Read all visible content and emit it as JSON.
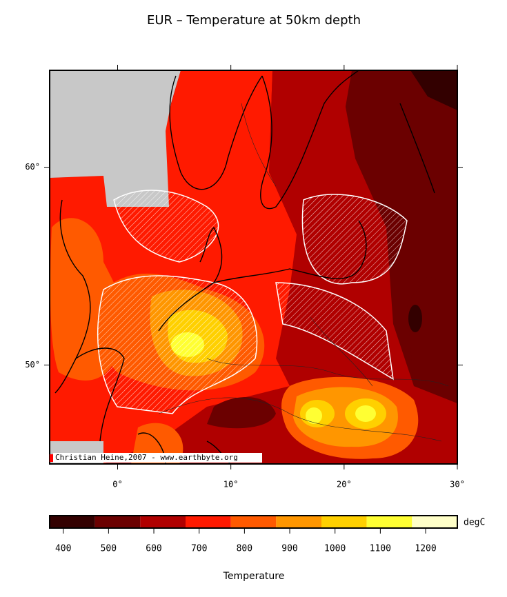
{
  "title": "EUR – Temperature at 50km depth",
  "map": {
    "xlim": [
      -6,
      30
    ],
    "ylim": [
      45,
      64.9
    ],
    "xticks": [
      {
        "value": 0,
        "label": "0°"
      },
      {
        "value": 10,
        "label": "10°"
      },
      {
        "value": 20,
        "label": "20°"
      },
      {
        "value": 30,
        "label": "30°"
      }
    ],
    "yticks": [
      {
        "value": 50,
        "label": "50°"
      },
      {
        "value": 60,
        "label": "60°"
      }
    ],
    "credit": "Christian Heine,2007 - www.earthbyte.org"
  },
  "colorbar": {
    "levels": [
      370,
      470,
      570,
      670,
      770,
      870,
      970,
      1070,
      1170,
      1270
    ],
    "colors": [
      "#330000",
      "#6b0000",
      "#b00000",
      "#ff1a00",
      "#ff5a00",
      "#ff9600",
      "#ffd000",
      "#ffff33",
      "#ffffc8"
    ],
    "ticks": [
      400,
      500,
      600,
      700,
      800,
      900,
      1000,
      1100,
      1200
    ],
    "unit": "degC",
    "label": "Temperature"
  }
}
